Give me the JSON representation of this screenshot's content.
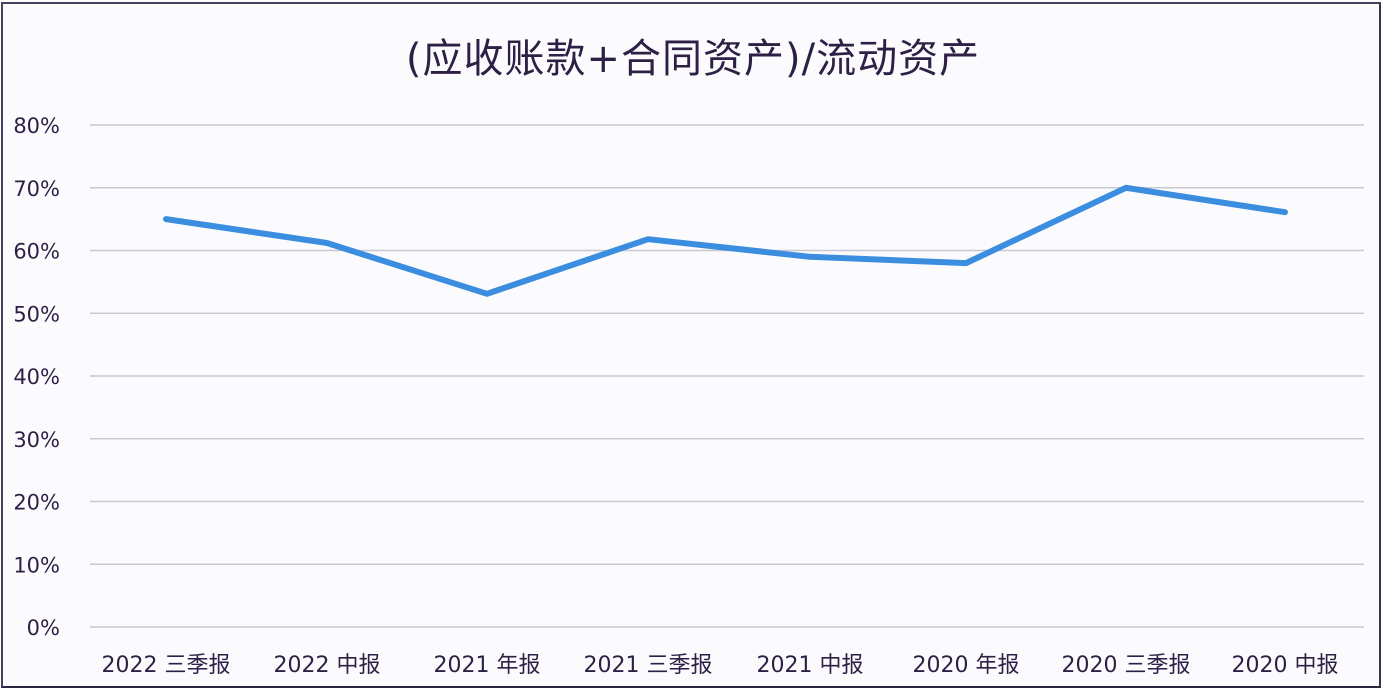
{
  "chart_data": {
    "type": "line",
    "title": "(应收账款+合同资产)/流动资产",
    "xlabel": "",
    "ylabel": "",
    "categories": [
      "2022 三季报",
      "2022 中报",
      "2021 年报",
      "2021 三季报",
      "2021 中报",
      "2020 年报",
      "2020 三季报",
      "2020 中报"
    ],
    "series": [
      {
        "name": "(应收账款+合同资产)/流动资产",
        "values": [
          65.0,
          61.2,
          53.1,
          61.8,
          59.0,
          58.0,
          70.0,
          66.1
        ],
        "color": "#3b8de0"
      }
    ],
    "ylim": [
      0,
      80
    ],
    "yticks": [
      "0%",
      "10%",
      "20%",
      "30%",
      "40%",
      "50%",
      "60%",
      "70%",
      "80%"
    ],
    "grid": true,
    "legend": "none"
  },
  "colors": {
    "line": "#3b8de0",
    "grid": "#c8c8d0",
    "text": "#2e1f45",
    "background": "#fbfbfe"
  }
}
